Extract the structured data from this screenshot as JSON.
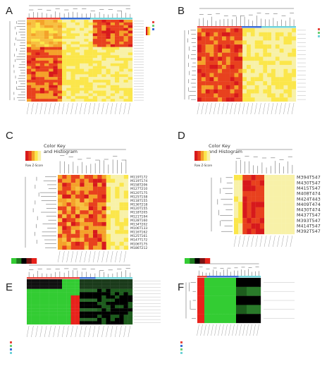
{
  "panels": {
    "A": {
      "letter": "A"
    },
    "B": {
      "letter": "B"
    },
    "C": {
      "letter": "C"
    },
    "D": {
      "letter": "D"
    },
    "E": {
      "letter": "E"
    },
    "F": {
      "letter": "F"
    }
  },
  "color_key": {
    "title_line1": "Color Key",
    "title_line2": "and Histogram",
    "xlabel": "Row Z-Score",
    "ticks": [
      "-1",
      "0",
      "1"
    ]
  },
  "panel_c_rows": [
    "M119T172",
    "M119T174",
    "M158T206",
    "M127T210",
    "M120T175",
    "M125T158",
    "M118T155",
    "M136T218",
    "M120T155",
    "M118T205",
    "M121T194",
    "M128T160",
    "M134T202",
    "M106T133",
    "M116T162",
    "M125T161",
    "M147T172",
    "M106T175",
    "M186T212"
  ],
  "panel_d_rows": [
    "M394T547",
    "M430T547",
    "M415T547",
    "M408T474",
    "M424T443",
    "M409T474",
    "M430T474",
    "M437T547",
    "M393T547",
    "M414T547",
    "M392T547"
  ],
  "colors": {
    "heat_red": "#d7191c",
    "heat_orange": "#f4a22a",
    "heat_yellow": "#fbe64a",
    "heat_pale": "#f8f1a8",
    "green": "#33cc33",
    "black": "#000000",
    "bright_red": "#e8221b",
    "band_red": "#e8453c",
    "band_blue": "#3b6fd6",
    "band_green": "#6ccf74",
    "band_cyan": "#6fd3d9"
  }
}
